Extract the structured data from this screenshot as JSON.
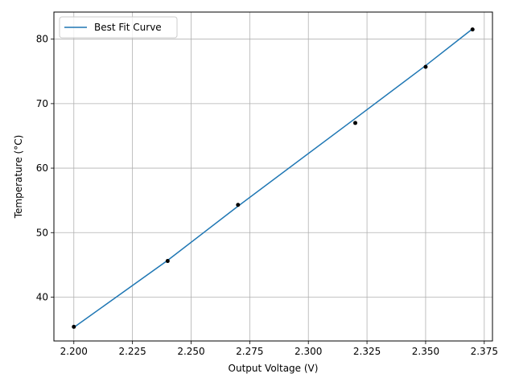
{
  "chart_data": {
    "type": "line",
    "xlabel": "Output Voltage (V)",
    "ylabel": "Temperature (°C)",
    "xlim": [
      2.1915,
      2.3785
    ],
    "ylim": [
      33.2,
      84.2
    ],
    "x_ticks": [
      2.2,
      2.225,
      2.25,
      2.275,
      2.3,
      2.325,
      2.35,
      2.375
    ],
    "x_tick_labels": [
      "2.200",
      "2.225",
      "2.250",
      "2.275",
      "2.300",
      "2.325",
      "2.350",
      "2.375"
    ],
    "y_ticks": [
      40,
      50,
      60,
      70,
      80
    ],
    "y_tick_labels": [
      "40",
      "50",
      "60",
      "70",
      "80"
    ],
    "grid": true,
    "legend": {
      "position": "top-left",
      "entries": [
        "Best Fit Curve"
      ]
    },
    "series": [
      {
        "name": "Best Fit Curve",
        "kind": "line",
        "color": "#1f77b4",
        "x": [
          2.2,
          2.24,
          2.27,
          2.32,
          2.35,
          2.37
        ],
        "y": [
          35.3,
          45.7,
          54.1,
          67.7,
          75.9,
          81.6
        ]
      },
      {
        "kind": "scatter",
        "color": "#000000",
        "x": [
          2.2,
          2.24,
          2.27,
          2.32,
          2.35,
          2.37
        ],
        "y": [
          35.4,
          45.6,
          54.3,
          67.0,
          75.7,
          81.5
        ]
      }
    ]
  }
}
